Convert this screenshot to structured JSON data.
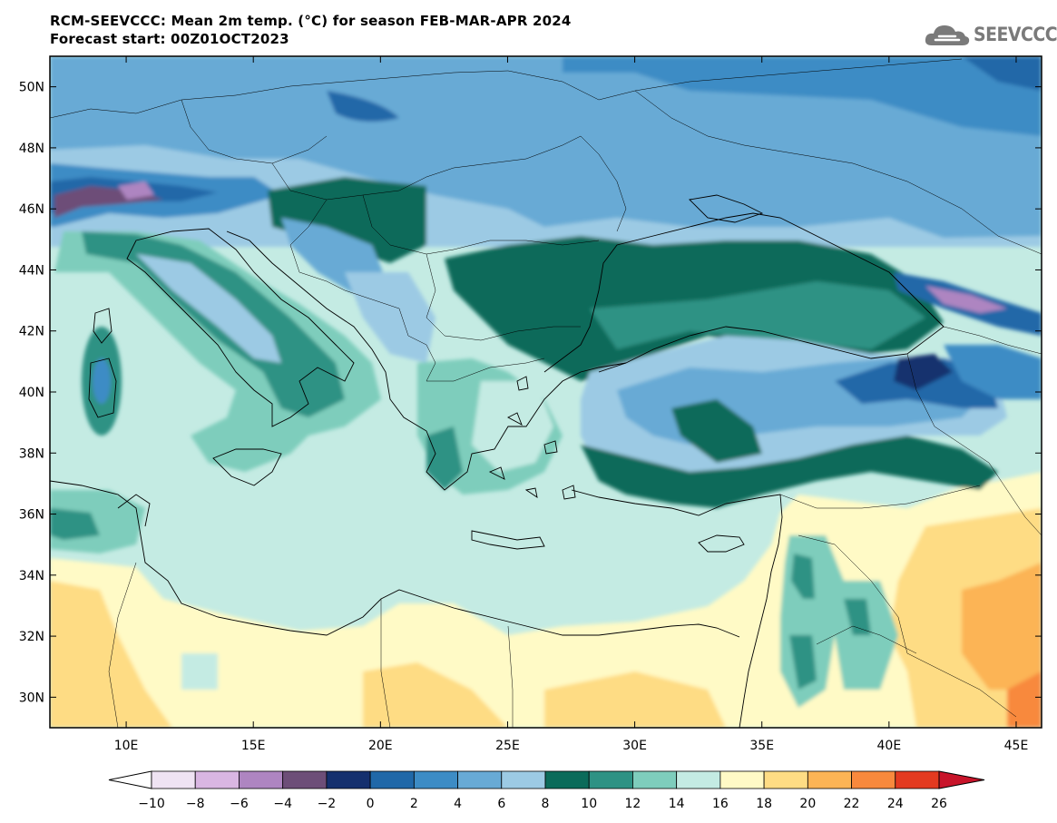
{
  "header": {
    "title_line1": "RCM-SEEVCCC: Mean 2m temp. (°C) for season FEB-MAR-APR 2024",
    "title_line2": "Forecast start: 00Z01OCT2023"
  },
  "logo": {
    "text": "SEEVCCC",
    "icon": "cloud-logo-icon"
  },
  "map": {
    "lon_range": [
      7,
      46
    ],
    "lat_range": [
      29,
      51
    ],
    "lat_ticks": [
      "50N",
      "48N",
      "46N",
      "44N",
      "42N",
      "40N",
      "38N",
      "36N",
      "34N",
      "32N",
      "30N"
    ],
    "lon_ticks": [
      "10E",
      "15E",
      "20E",
      "25E",
      "30E",
      "35E",
      "40E",
      "45E"
    ]
  },
  "colorbar": {
    "labels": [
      "−10",
      "−8",
      "−6",
      "−4",
      "−2",
      "0",
      "2",
      "4",
      "6",
      "8",
      "10",
      "12",
      "14",
      "16",
      "18",
      "20",
      "22",
      "24",
      "26"
    ],
    "colors": [
      "#efe3f3",
      "#d9b6e2",
      "#ae85c1",
      "#6d4e78",
      "#15306e",
      "#2068a8",
      "#3d8cc5",
      "#68aad5",
      "#9ccae4",
      "#0b6b5a",
      "#2e9284",
      "#7ecdbc",
      "#c4ebe3",
      "#fffac6",
      "#fedc84",
      "#fcb455",
      "#f8893d",
      "#e33a20"
    ],
    "low_color": "#ffffff",
    "high_color": "#c8142a"
  }
}
